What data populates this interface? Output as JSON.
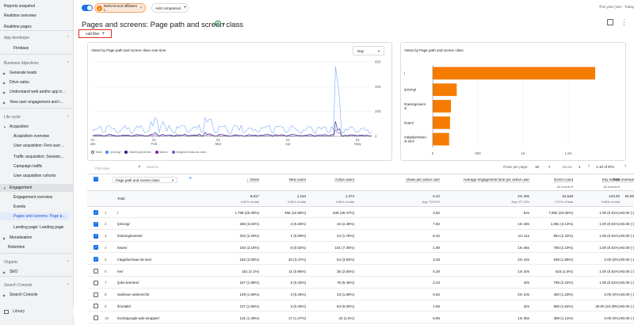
{
  "sidebar": {
    "items": [
      {
        "label": "Reports snapshot",
        "type": "item",
        "indent": 0
      },
      {
        "label": "Realtime overview",
        "type": "item",
        "indent": 0
      },
      {
        "label": "Realtime pages",
        "type": "item",
        "indent": 0
      },
      {
        "label": "App developer",
        "type": "section",
        "indent": 0
      },
      {
        "label": "Firebase",
        "type": "item",
        "indent": 2
      },
      {
        "label": "Business objectives",
        "type": "section",
        "indent": 0
      },
      {
        "label": "Generate leads",
        "type": "group",
        "indent": 0
      },
      {
        "label": "Drive sales",
        "type": "group",
        "indent": 0
      },
      {
        "label": "Understand web and/or app tr...",
        "type": "group",
        "indent": 0
      },
      {
        "label": "View user engagement and r...",
        "type": "group",
        "indent": 0
      },
      {
        "label": "Life cycle",
        "type": "section",
        "indent": 0
      },
      {
        "label": "Acquisition",
        "type": "group-open",
        "indent": 0
      },
      {
        "label": "Acquisition overview",
        "type": "item",
        "indent": 2
      },
      {
        "label": "User acquisition: First user ...",
        "type": "item",
        "indent": 2
      },
      {
        "label": "Traffic acquisition: Session...",
        "type": "item",
        "indent": 2
      },
      {
        "label": "Campaign traffic",
        "type": "item",
        "indent": 2
      },
      {
        "label": "User acquisition cohorts",
        "type": "item",
        "indent": 2
      },
      {
        "label": "Engagement",
        "type": "group-open-active",
        "indent": 0
      },
      {
        "label": "Engagement overview",
        "type": "item",
        "indent": 2
      },
      {
        "label": "Events",
        "type": "item",
        "indent": 2
      },
      {
        "label": "Pages and screens: Page p...",
        "type": "selected",
        "indent": 2
      },
      {
        "label": "Landing page: Landing page",
        "type": "item",
        "indent": 2
      },
      {
        "label": "Monetisation",
        "type": "group",
        "indent": 0
      },
      {
        "label": "Retention",
        "type": "item",
        "indent": 1
      },
      {
        "label": "Organic",
        "type": "section",
        "indent": 0
      },
      {
        "label": "SEO",
        "type": "group",
        "indent": 0
      },
      {
        "label": "Search Console",
        "type": "section",
        "indent": 0
      },
      {
        "label": "Search Console",
        "type": "group",
        "indent": 0
      }
    ],
    "library_label": "Library"
  },
  "topbar": {
    "segment_badge": "A",
    "segment_label": "Referral and affiliates t...",
    "add_comparison": "Add comparison",
    "date_range": "This year (Jan - Today"
  },
  "page": {
    "title": "Pages and screens: Page path and screen class",
    "add_filter": "Add filter"
  },
  "line_chart": {
    "title": "Views by Page path and screen class over time",
    "granularity": "Day",
    "y_ticks": [
      "600",
      "400",
      "200",
      "0"
    ],
    "x_ticks": [
      "01\nJan",
      "01\nFeb",
      "01\nMar",
      "01\nApr",
      "01\nMay"
    ],
    "legend": [
      "Total",
      "/pricing/",
      "/training/events/",
      "/team/",
      "/ratgeber/was-ist-seo/"
    ]
  },
  "chart_data": {
    "type": "bar",
    "title": "Views by Page path and screen class",
    "categories": [
      "/",
      "/pricing/",
      "/training/events/",
      "/team/",
      "/ratgeber/was-ist-seo/"
    ],
    "category_labels": [
      "/",
      "/pricing/",
      "/training/event\ns/",
      "/team/",
      "/ratgeber/was-i\nst-seo/"
    ],
    "values": [
      1798,
      266,
      202,
      192,
      182
    ],
    "xlim": [
      0,
      2000
    ],
    "x_ticks": [
      "0",
      "500",
      "1K",
      "1.5K"
    ],
    "color": "#f57c00"
  },
  "toolbar": {
    "search_placeholder": "Search...",
    "rows_label": "Rows per page:",
    "rows_value": "10",
    "goto_label": "Go to:",
    "goto_value": "1",
    "pager": "1-10 of 974",
    "plot_rows": "Plot rows"
  },
  "table": {
    "dimension": "Page path and screen class",
    "headers": [
      {
        "label": "↓ Views",
        "sub": ""
      },
      {
        "label": "New users",
        "sub": ""
      },
      {
        "label": "Active users",
        "sub": ""
      },
      {
        "label": "Views per active user",
        "sub": ""
      },
      {
        "label": "Average engagement time per active user",
        "sub": ""
      },
      {
        "label": "Event count",
        "sub": "All events ▾"
      },
      {
        "label": "Key events",
        "sub": "All events ▾"
      },
      {
        "label": "Total revenue",
        "sub": ""
      }
    ],
    "totals": {
      "label": "Total",
      "values": [
        "8,817",
        "1,154",
        "1,373",
        "6.42",
        "2m 28s",
        "34,548",
        "123.00",
        "€0.00"
      ],
      "subs": [
        "6.82% of total",
        "3.05% of total",
        "3.55% of total",
        "Avg +72.57%",
        "Avg +27.22%",
        "7.57% of total",
        "5.68% of total",
        ""
      ]
    },
    "rows": [
      {
        "n": "1",
        "checked": true,
        "page": "/",
        "v": [
          "1,798 (20.39%)",
          "496 (42.98%)",
          "638 (46.47%)",
          "2.82",
          "54s",
          "7,992 (23.05%)",
          "1.00 (0.81%)",
          "€0.00 (-)"
        ]
      },
      {
        "n": "2",
        "checked": true,
        "page": "/pricing/",
        "v": [
          "266 (3.02%)",
          "3 (0.26%)",
          "34 (2.48%)",
          "7.82",
          "1m 48s",
          "1,081 (3.13%)",
          "1.00 (0.81%)",
          "€0.00 (-)"
        ]
      },
      {
        "n": "3",
        "checked": true,
        "page": "/training/events/",
        "v": [
          "202 (2.29%)",
          "1 (0.09%)",
          "24 (1.75%)",
          "8.42",
          "1m 11s",
          "854 (2.33%)",
          "1.00 (0.81%)",
          "€0.00 (-)"
        ]
      },
      {
        "n": "4",
        "checked": true,
        "page": "/team/",
        "v": [
          "192 (2.18%)",
          "6 (0.52%)",
          "101 (7.36%)",
          "1.90",
          "1m 36s",
          "756 (2.19%)",
          "1.00 (0.81%)",
          "€0.00 (-)"
        ]
      },
      {
        "n": "5",
        "checked": true,
        "page": "/ratgeber/was-ist-seo/",
        "v": [
          "182 (2.06%)",
          "40 (3.47%)",
          "54 (3.93%)",
          "3.48",
          "2m 42s",
          "639 (1.85%)",
          "0.00 (0%)",
          "€0.00 (-)"
        ]
      },
      {
        "n": "6",
        "checked": false,
        "page": "/en/",
        "v": [
          "181 (2.1%)",
          "11 (0.95%)",
          "35 (2.55%)",
          "5.29",
          "1m 20s",
          "623 (1.8%)",
          "1.00 (0.81%)",
          "€0.00 (-)"
        ]
      },
      {
        "n": "7",
        "checked": false,
        "page": "/jobs-karriere/",
        "v": [
          "167 (1.89%)",
          "5 (0.43%)",
          "78 (5.46%)",
          "2.23",
          "40s",
          "768 (2.22%)",
          "1.00 (0.81%)",
          "€0.00 (-)"
        ]
      },
      {
        "n": "8",
        "checked": false,
        "page": "/webinar-uebersicht/",
        "v": [
          "149 (1.69%)",
          "3 (0.26%)",
          "23 (1.68%)",
          "6.52",
          "2m 23s",
          "460 (1.33%)",
          "0.00 (0%)",
          "€0.00 (-)"
        ]
      },
      {
        "n": "9",
        "checked": false,
        "page": "/kontakt/",
        "v": [
          "137 (1.55%)",
          "3 (0.26%)",
          "83 (6.05%)",
          "1.65",
          "32s",
          "665 (1.92%)",
          "30.00 (24.39%)",
          "€0.00 (-)"
        ]
      },
      {
        "n": "10",
        "checked": false,
        "page": "/tools/google-ads-wrapper/",
        "v": [
          "131 (1.49%)",
          "17 (1.47%)",
          "22 (1.6%)",
          "5.95",
          "1m 35s",
          "389 (1.13%)",
          "0.00 (0%)",
          "€0.00 (-)"
        ]
      }
    ]
  }
}
